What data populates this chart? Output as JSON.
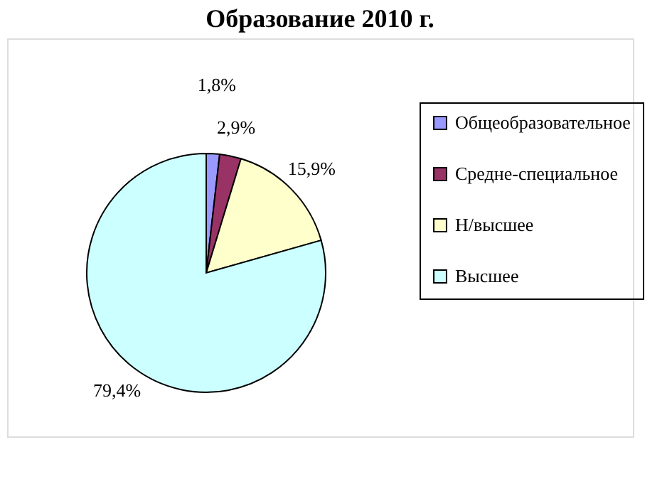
{
  "chart_data": {
    "type": "pie",
    "title": "Образование 2010 г.",
    "categories": [
      "Общеобразовательное",
      "Средне-специальное",
      "Н/высшее",
      "Высшее"
    ],
    "values": [
      1.8,
      2.9,
      15.9,
      79.4
    ],
    "colors": [
      "#9999ff",
      "#993366",
      "#ffffcc",
      "#ccffff"
    ],
    "value_labels": [
      "1,8%",
      "2,9%",
      "15,9%",
      "79,4%"
    ],
    "legend": "right"
  }
}
